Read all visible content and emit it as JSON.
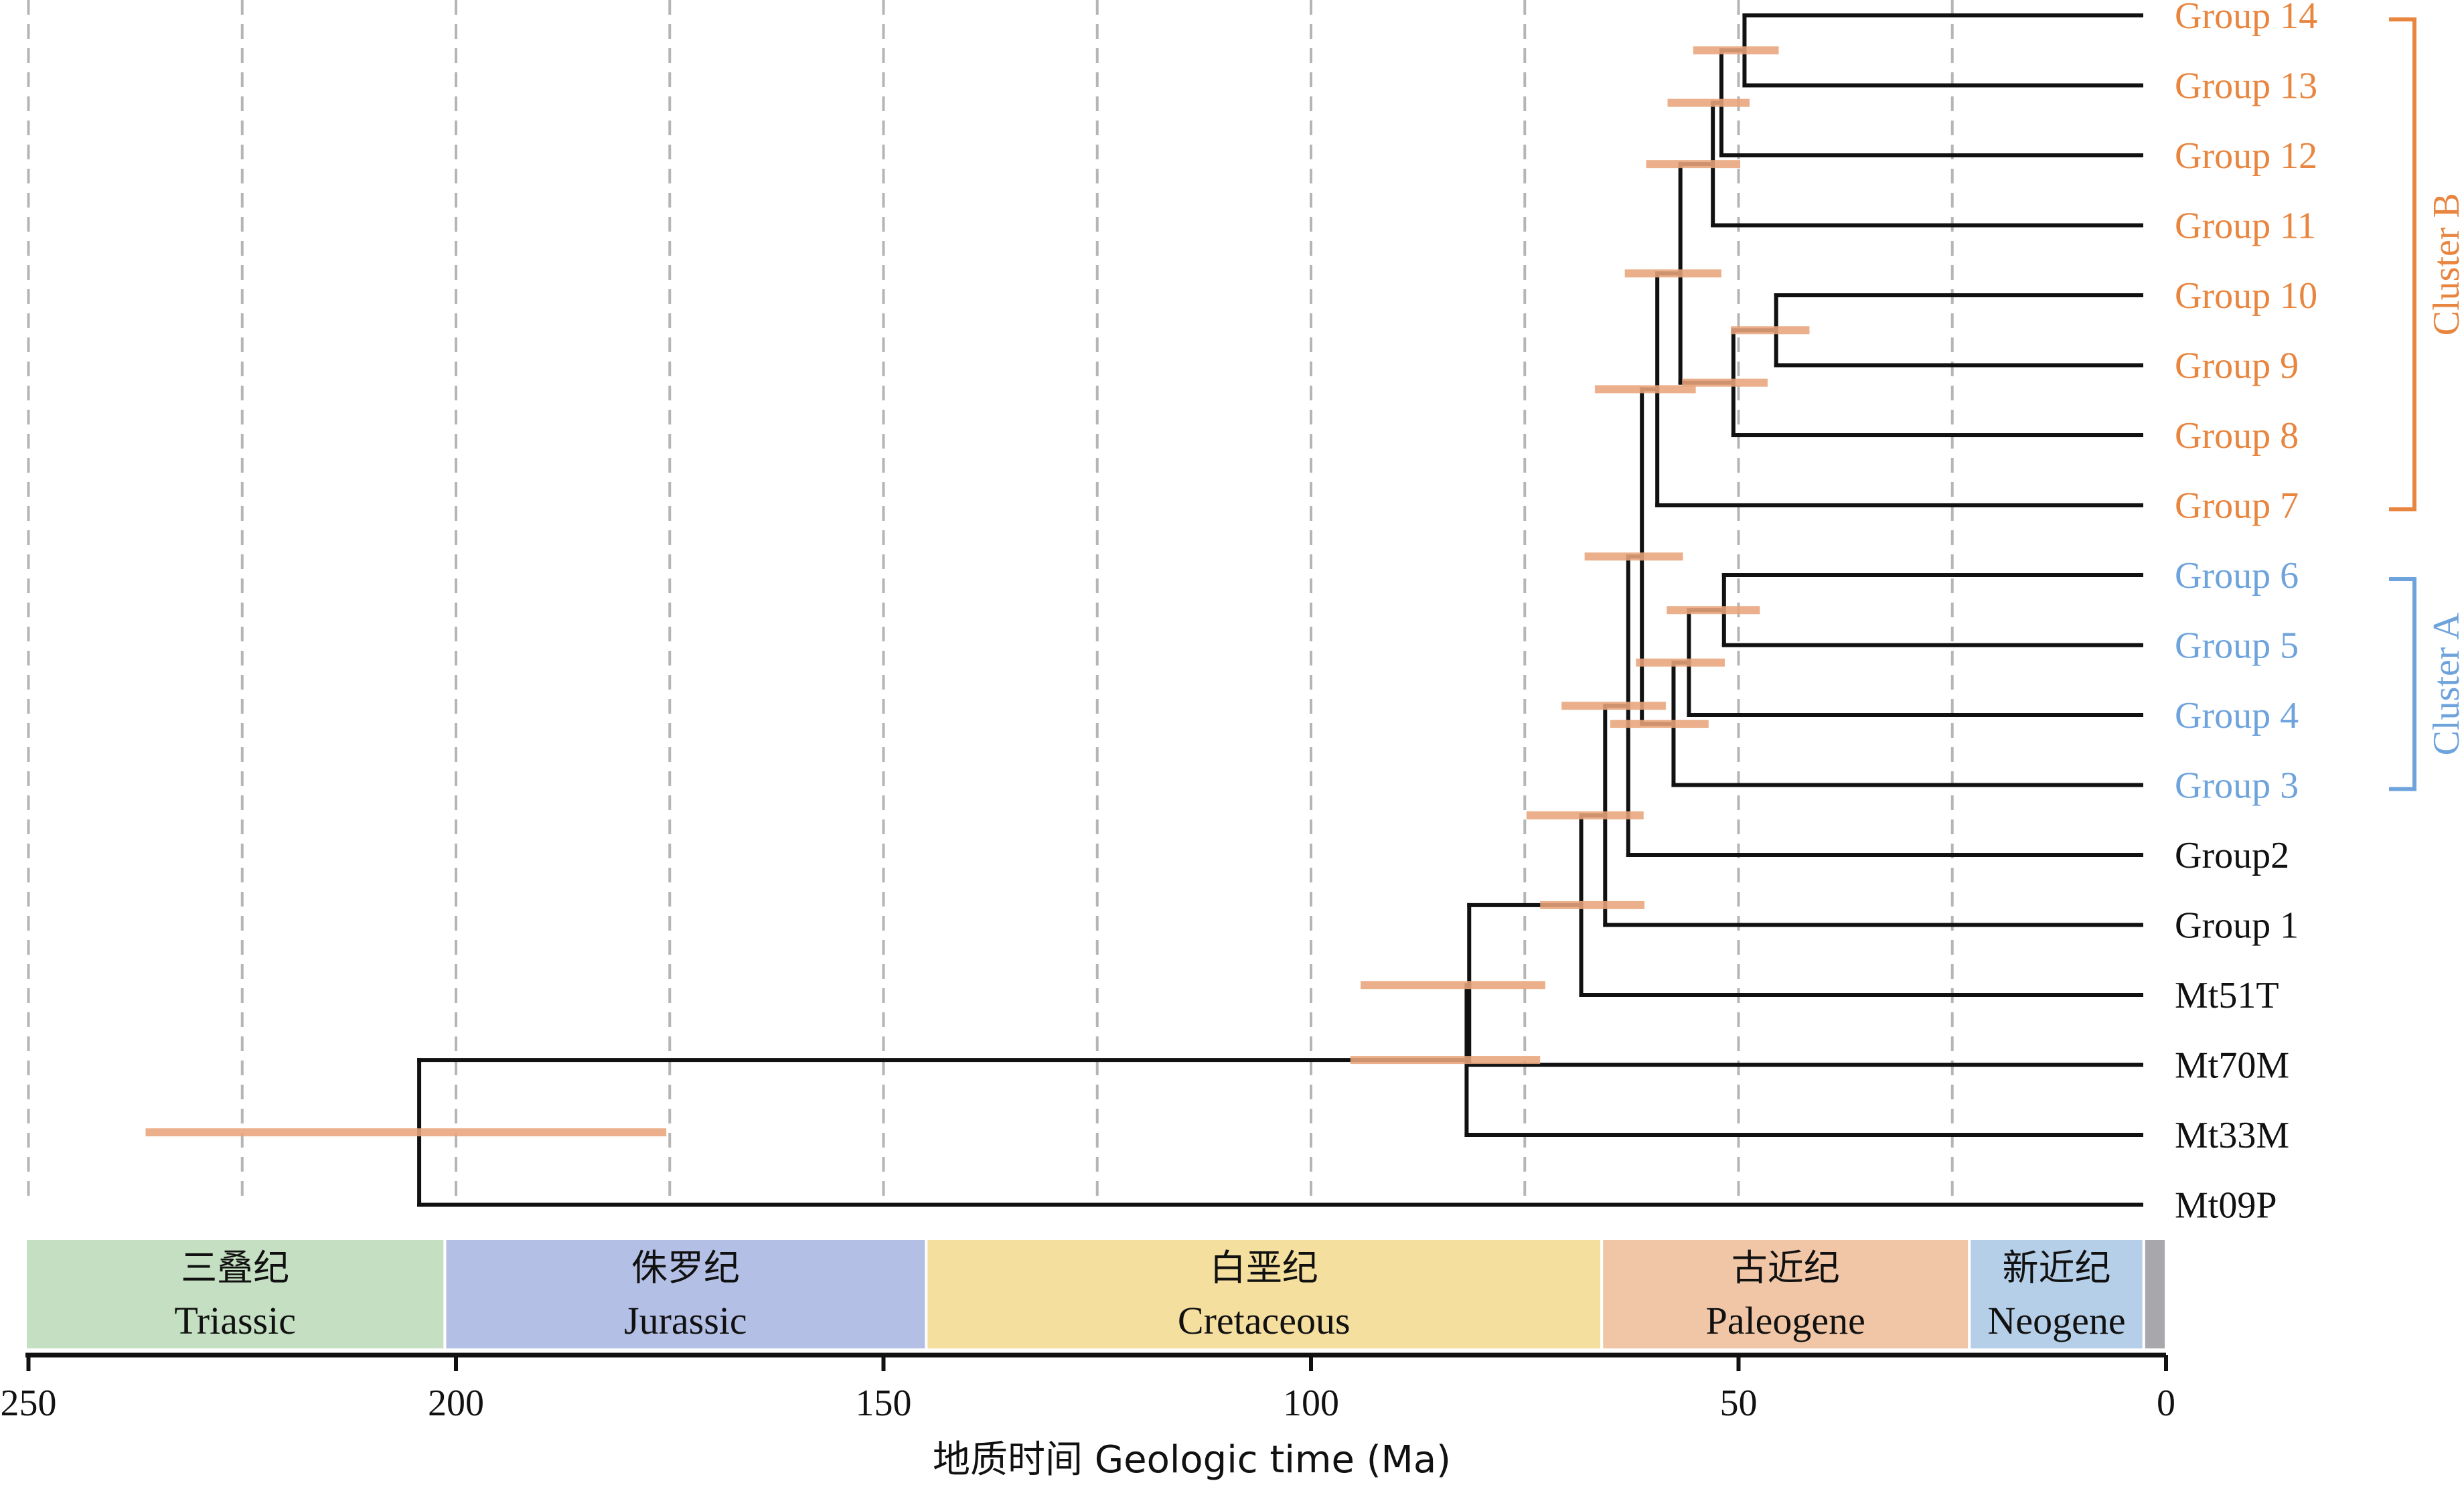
{
  "axis": {
    "label": "地质时间 Geologic time (Ma)",
    "ticks": [
      250,
      200,
      150,
      100,
      50,
      0
    ]
  },
  "periods": [
    {
      "cn": "三叠纪",
      "en": "Triassic",
      "start": 251.9,
      "end": 201.3,
      "color": "#c4dfc1"
    },
    {
      "cn": "侏罗纪",
      "en": "Jurassic",
      "start": 201.3,
      "end": 145.0,
      "color": "#b3bfe4"
    },
    {
      "cn": "白垩纪",
      "en": "Cretaceous",
      "start": 145.0,
      "end": 66.0,
      "color": "#f5df9f"
    },
    {
      "cn": "古近纪",
      "en": "Paleogene",
      "start": 66.0,
      "end": 23.0,
      "color": "#f1c6a6"
    },
    {
      "cn": "新近纪",
      "en": "Neogene",
      "start": 23.0,
      "end": 2.6,
      "color": "#b6cfe9"
    },
    {
      "cn": "",
      "en": "",
      "start": 2.6,
      "end": 0,
      "color": "#a8a8ac"
    }
  ],
  "taxa": [
    {
      "label": "Group 14",
      "color": "#e8853f"
    },
    {
      "label": "Group 13",
      "color": "#e8853f"
    },
    {
      "label": "Group 12",
      "color": "#e8853f"
    },
    {
      "label": "Group 11",
      "color": "#e8853f"
    },
    {
      "label": "Group 10",
      "color": "#e8853f"
    },
    {
      "label": "Group 9",
      "color": "#e8853f"
    },
    {
      "label": "Group 8",
      "color": "#e8853f"
    },
    {
      "label": "Group 7",
      "color": "#e8853f"
    },
    {
      "label": "Group 6",
      "color": "#6ea3dc"
    },
    {
      "label": "Group 5",
      "color": "#6ea3dc"
    },
    {
      "label": "Group 4",
      "color": "#6ea3dc"
    },
    {
      "label": "Group 3",
      "color": "#6ea3dc"
    },
    {
      "label": "Group2",
      "color": "#111111"
    },
    {
      "label": "Group 1",
      "color": "#111111"
    },
    {
      "label": "Mt51T",
      "color": "#111111"
    },
    {
      "label": "Mt70M",
      "color": "#111111"
    },
    {
      "label": "Mt33M",
      "color": "#111111"
    },
    {
      "label": "Mt09P",
      "color": "#111111"
    }
  ],
  "nodes": [
    {
      "age": 49.3,
      "hpd": [
        45.3,
        55.3
      ]
    },
    {
      "age": 52.0,
      "hpd": [
        48.7,
        58.3
      ]
    },
    {
      "age": 53.0,
      "hpd": [
        49.8,
        60.8
      ]
    },
    {
      "age": 45.6,
      "hpd": [
        41.7,
        50.9
      ]
    },
    {
      "age": 50.6,
      "hpd": [
        46.6,
        56.6
      ]
    },
    {
      "age": 56.8,
      "hpd": [
        52.0,
        63.3
      ]
    },
    {
      "age": 59.5,
      "hpd": [
        55.0,
        66.8
      ]
    },
    {
      "age": 51.7,
      "hpd": [
        47.5,
        58.4
      ]
    },
    {
      "age": 55.8,
      "hpd": [
        51.6,
        62.0
      ]
    },
    {
      "age": 57.6,
      "hpd": [
        53.5,
        65.0
      ]
    },
    {
      "age": 61.3,
      "hpd": [
        56.5,
        68.0
      ]
    },
    {
      "age": 62.9,
      "hpd": [
        58.5,
        70.7
      ]
    },
    {
      "age": 65.6,
      "hpd": [
        61.1,
        74.8
      ]
    },
    {
      "age": 68.4,
      "hpd": [
        61.0,
        73.2
      ]
    },
    {
      "age": 81.5,
      "hpd": [
        72.6,
        94.2
      ]
    },
    {
      "age": 81.8,
      "hpd": [
        73.2,
        95.4
      ]
    },
    {
      "age": 204.3,
      "hpd": [
        175.4,
        236.3
      ]
    }
  ],
  "clusters": [
    {
      "label": "Cluster B",
      "color": "#e8853f"
    },
    {
      "label": "Cluster A",
      "color": "#6ea3dc"
    }
  ],
  "style": {
    "branch_color": "#111111",
    "hpd_color": "#e8a57b",
    "grid_color": "#b5b5b5"
  }
}
